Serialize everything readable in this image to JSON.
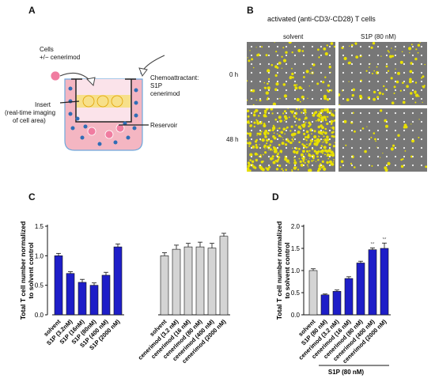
{
  "panels": {
    "a": "A",
    "b": "B",
    "c": "C",
    "d": "D"
  },
  "panel_a": {
    "cells_label": "Cells",
    "cells_sub": "+/− cenerimod",
    "chemo_label": "Chemoattractant:",
    "chemo_items": [
      "S1P",
      "cenerimod"
    ],
    "insert_label": "Insert",
    "insert_sub_1": "(real-time imaging",
    "insert_sub_2": "of cell area)",
    "reservoir_label": "Reservoir",
    "colors": {
      "well": "#f4b6c2",
      "insert": "#f7e08a",
      "dot": "#2f6db5",
      "cell": "#f07ca0"
    }
  },
  "panel_b": {
    "title": "activated (anti-CD3/-CD28) T cells",
    "columns": [
      "solvent",
      "S1P (80 nM)"
    ],
    "rows": [
      "0 h",
      "48 h"
    ],
    "colors": {
      "background": "#7a7a7a",
      "cells": "#e8e000",
      "dots": "#f2f2f2"
    }
  },
  "chart_data": [
    {
      "type": "bar",
      "panel": "C",
      "ylabel": "Total T cell number normalized to solvent control",
      "ylim": [
        0,
        1.5
      ],
      "yticks": [
        0.0,
        0.5,
        1.0,
        1.5
      ],
      "grid": false,
      "groups": [
        {
          "color": "#1e1ec8",
          "categories": [
            "solvent",
            "S1P (3.2nM)",
            "S1P (16nM)",
            "S1P (80nM)",
            "S1P (400 nM)",
            "S1P (2000 nM)"
          ],
          "values": [
            1.0,
            0.7,
            0.55,
            0.5,
            0.67,
            1.15
          ],
          "errors": [
            0.04,
            0.03,
            0.05,
            0.04,
            0.05,
            0.05
          ]
        },
        {
          "color": "#d4d4d4",
          "categories": [
            "solvent",
            "cenerimod (3.2 nM)",
            "cenerimod (16 nM)",
            "cenerimod (80 nM)",
            "cenerimod (400 nM)",
            "cenerimod (2000 nM)"
          ],
          "values": [
            1.0,
            1.11,
            1.15,
            1.15,
            1.13,
            1.33
          ],
          "errors": [
            0.05,
            0.07,
            0.06,
            0.08,
            0.08,
            0.05
          ]
        }
      ]
    },
    {
      "type": "bar",
      "panel": "D",
      "ylabel": "Total T cell number normalized to solvent control",
      "ylim": [
        0,
        2.0
      ],
      "yticks": [
        0.0,
        0.5,
        1.0,
        1.5,
        2.0
      ],
      "grid": false,
      "categories": [
        "solvent",
        "S1P (80 nM)",
        "cenerimod (3.2 nM)",
        "cenerimod (16 nM)",
        "cenerimod (80 nM)",
        "cenerimod (400 nM)",
        "cenerimod (2000 nM)"
      ],
      "values": [
        1.0,
        0.45,
        0.53,
        0.82,
        1.17,
        1.47,
        1.5
      ],
      "errors": [
        0.04,
        0.02,
        0.03,
        0.04,
        0.04,
        0.04,
        0.12
      ],
      "colors": [
        "#d4d4d4",
        "#1e1ec8",
        "#1e1ec8",
        "#1e1ec8",
        "#1e1ec8",
        "#1e1ec8",
        "#1e1ec8"
      ],
      "annotations": [
        "",
        "",
        "",
        "",
        "",
        "**",
        "**"
      ],
      "bracket_label": "S1P (80 nM)"
    }
  ]
}
